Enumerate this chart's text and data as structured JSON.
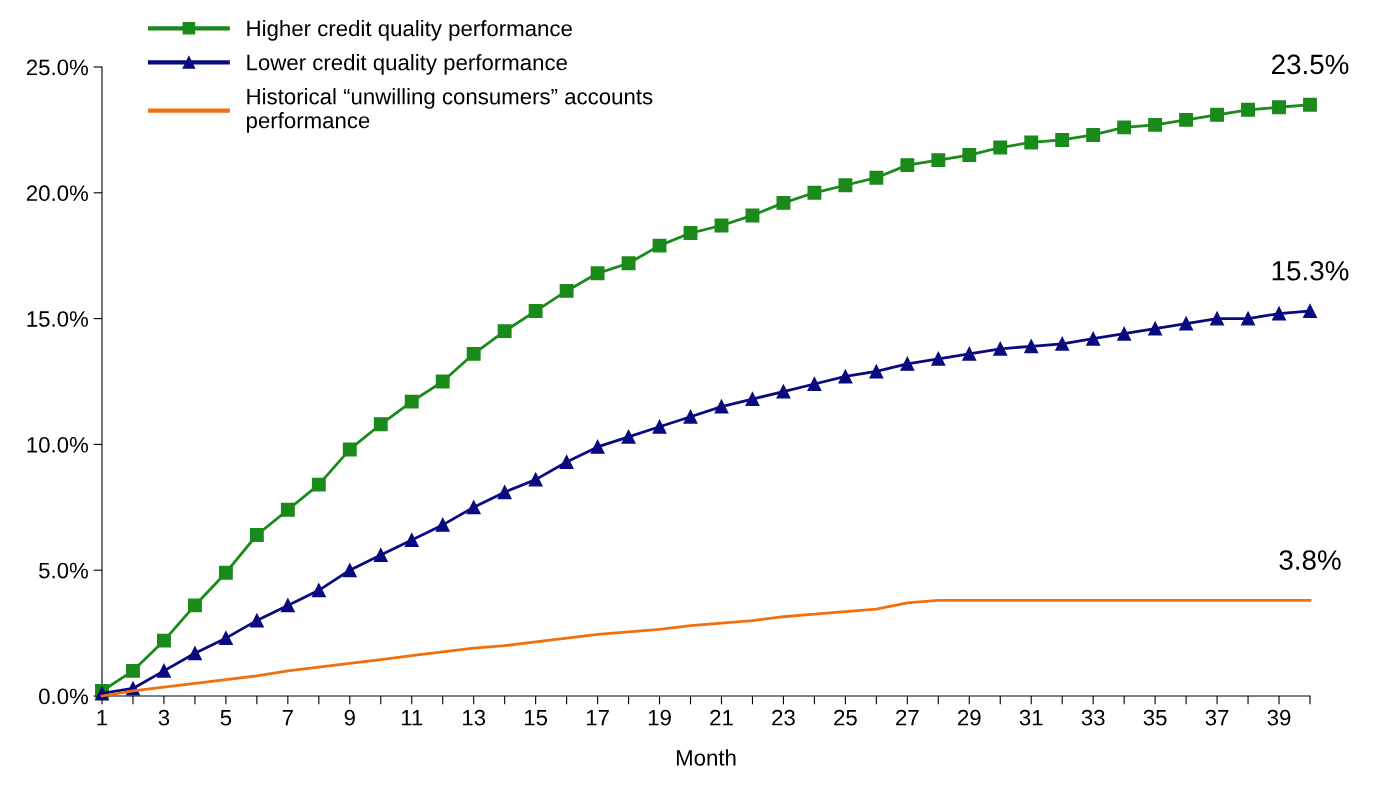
{
  "chart_data": {
    "type": "line",
    "xlabel": "Month",
    "x": [
      1,
      2,
      3,
      4,
      5,
      6,
      7,
      8,
      9,
      10,
      11,
      12,
      13,
      14,
      15,
      16,
      17,
      18,
      19,
      20,
      21,
      22,
      23,
      24,
      25,
      26,
      27,
      28,
      29,
      30,
      31,
      32,
      33,
      34,
      35,
      36,
      37,
      38,
      39,
      40
    ],
    "series": [
      {
        "name": "Higher credit quality performance",
        "color": "#1a8a1a",
        "marker": "square",
        "values": [
          0.2,
          1.0,
          2.2,
          3.6,
          4.9,
          6.4,
          7.4,
          8.4,
          9.8,
          10.8,
          11.7,
          12.5,
          13.6,
          14.5,
          15.3,
          16.1,
          16.8,
          17.2,
          17.9,
          18.4,
          18.7,
          19.1,
          19.6,
          20.0,
          20.3,
          20.6,
          21.1,
          21.3,
          21.5,
          21.8,
          22.0,
          22.1,
          22.3,
          22.6,
          22.7,
          22.9,
          23.1,
          23.3,
          23.4,
          23.5
        ],
        "value_labels": [
          null,
          null,
          null,
          null,
          null,
          null,
          null,
          null,
          null,
          null,
          null,
          null,
          null,
          null,
          null,
          null,
          null,
          null,
          null,
          null,
          null,
          null,
          null,
          null,
          null,
          null,
          null,
          null,
          null,
          null,
          null,
          null,
          null,
          null,
          null,
          null,
          null,
          null,
          null,
          "23.5%"
        ]
      },
      {
        "name": "Lower credit quality performance",
        "color": "#0a0a80",
        "marker": "triangle",
        "values": [
          0.1,
          0.3,
          1.0,
          1.7,
          2.3,
          3.0,
          3.6,
          4.2,
          5.0,
          5.6,
          6.2,
          6.8,
          7.5,
          8.1,
          8.6,
          9.3,
          9.9,
          10.3,
          10.7,
          11.1,
          11.5,
          11.8,
          12.1,
          12.4,
          12.7,
          12.9,
          13.2,
          13.4,
          13.6,
          13.8,
          13.9,
          14.0,
          14.2,
          14.4,
          14.6,
          14.8,
          15.0,
          15.0,
          15.2,
          15.3
        ],
        "value_labels": [
          null,
          null,
          null,
          null,
          null,
          null,
          null,
          null,
          null,
          null,
          null,
          null,
          null,
          null,
          null,
          null,
          null,
          null,
          null,
          null,
          null,
          null,
          null,
          null,
          null,
          null,
          null,
          null,
          null,
          null,
          null,
          null,
          null,
          null,
          null,
          null,
          null,
          null,
          null,
          "15.3%"
        ]
      },
      {
        "name": "Historical “unwilling consumers” accounts\nperformance",
        "color": "#f07010",
        "marker": "none",
        "values": [
          0.0,
          0.2,
          0.35,
          0.5,
          0.65,
          0.8,
          1.0,
          1.15,
          1.3,
          1.45,
          1.6,
          1.75,
          1.9,
          2.0,
          2.15,
          2.3,
          2.45,
          2.55,
          2.65,
          2.8,
          2.9,
          3.0,
          3.15,
          3.25,
          3.35,
          3.45,
          3.7,
          3.8,
          3.8,
          3.8,
          3.8,
          3.8,
          3.8,
          3.8,
          3.8,
          3.8,
          3.8,
          3.8,
          3.8,
          3.8
        ],
        "value_labels": [
          null,
          null,
          null,
          null,
          null,
          null,
          null,
          null,
          null,
          null,
          null,
          null,
          null,
          null,
          null,
          null,
          null,
          null,
          null,
          null,
          null,
          null,
          null,
          null,
          null,
          null,
          null,
          null,
          null,
          null,
          null,
          null,
          null,
          null,
          null,
          null,
          null,
          null,
          null,
          "3.8%"
        ]
      }
    ],
    "xlim": [
      1,
      40
    ],
    "xticks": [
      1,
      {
        "value": 2,
        "label": null
      },
      3,
      {
        "value": 4,
        "label": null
      },
      5,
      {
        "value": 6,
        "label": null
      },
      7,
      {
        "value": 8,
        "label": null
      },
      9,
      {
        "value": 10,
        "label": null
      },
      11,
      {
        "value": 12,
        "label": null
      },
      13,
      {
        "value": 14,
        "label": null
      },
      15,
      {
        "value": 16,
        "label": null
      },
      17,
      {
        "value": 18,
        "label": null
      },
      19,
      {
        "value": 20,
        "label": null
      },
      21,
      {
        "value": 22,
        "label": null
      },
      23,
      {
        "value": 24,
        "label": null
      },
      25,
      {
        "value": 26,
        "label": null
      },
      27,
      {
        "value": 28,
        "label": null
      },
      29,
      {
        "value": 30,
        "label": null
      },
      31,
      {
        "value": 32,
        "label": null
      },
      33,
      {
        "value": 34,
        "label": null
      },
      35,
      {
        "value": 36,
        "label": null
      },
      37,
      {
        "value": 38,
        "label": null
      },
      39,
      {
        "value": 40,
        "label": null
      }
    ],
    "ylim": [
      0,
      25
    ],
    "yticks": [
      {
        "value": 0,
        "label": "0.0%"
      },
      {
        "value": 5,
        "label": "5.0%"
      },
      {
        "value": 10,
        "label": "10.0%"
      },
      {
        "value": 15,
        "label": "15.0%"
      },
      {
        "value": 20,
        "label": "20.0%"
      },
      {
        "value": 25,
        "label": "25.0%"
      }
    ],
    "grid": false,
    "legend": "top left",
    "line_style": "solid"
  }
}
